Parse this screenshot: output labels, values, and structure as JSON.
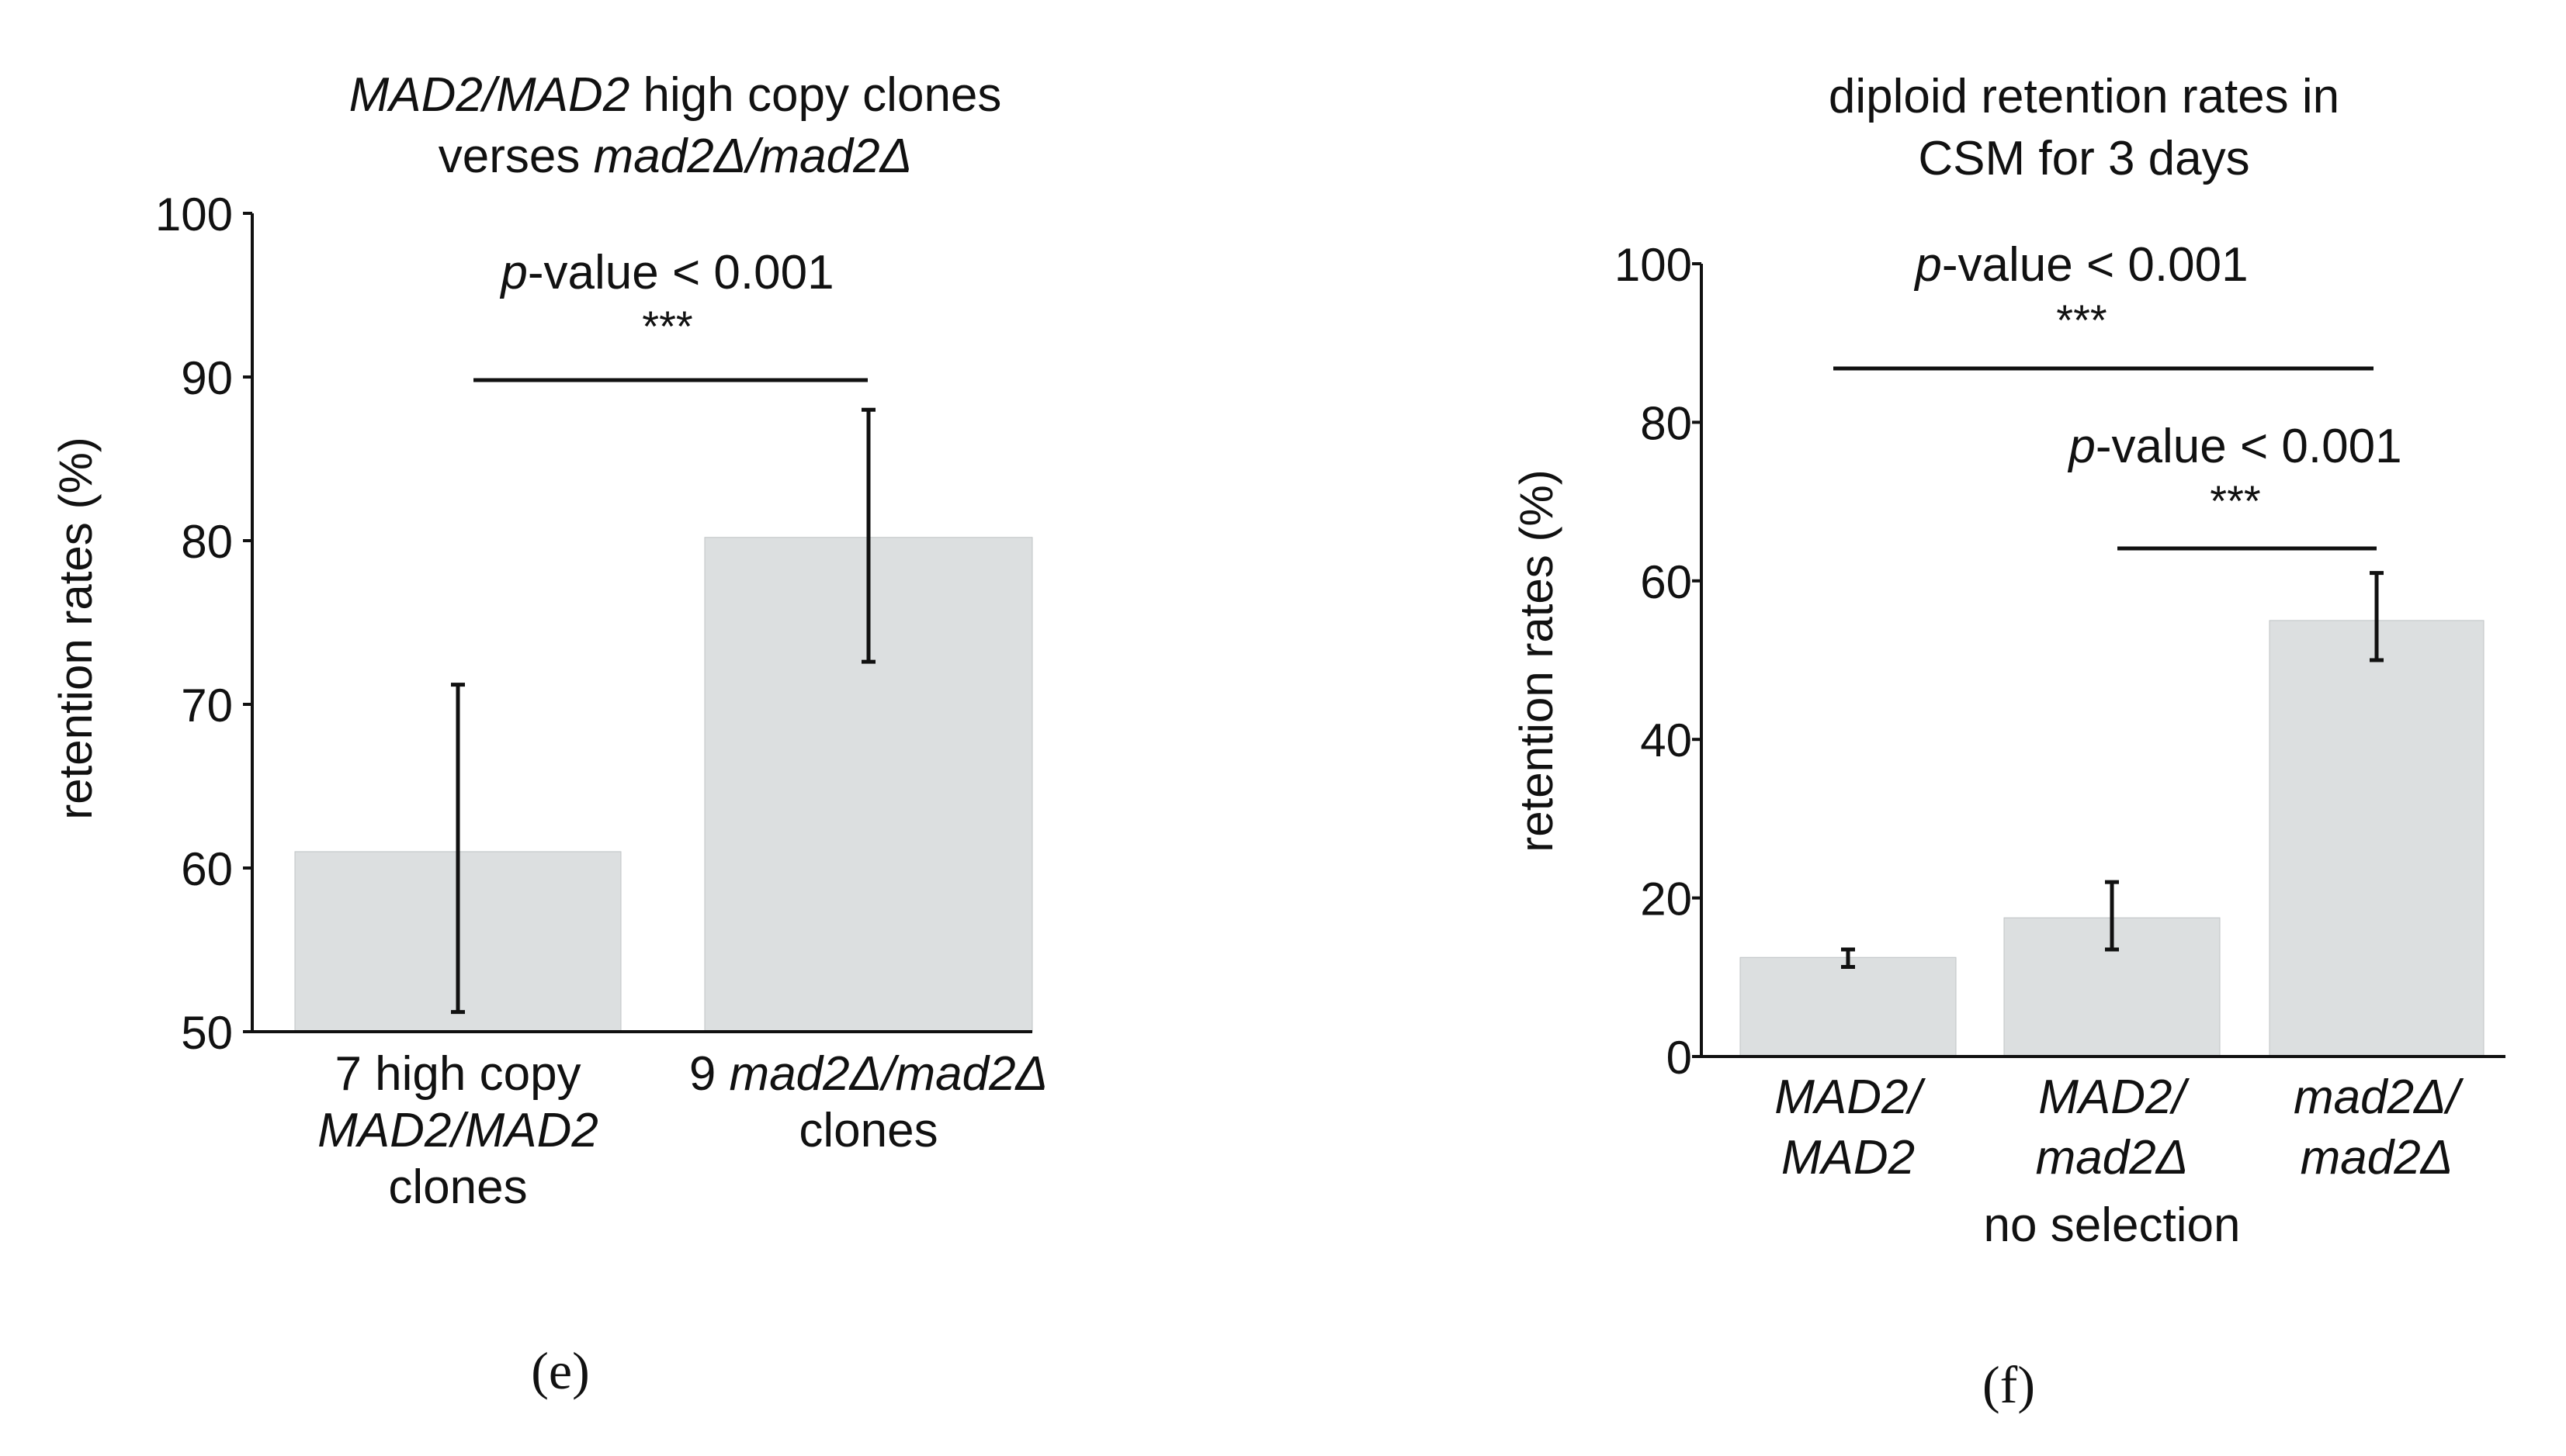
{
  "chart_data": [
    {
      "panel": "(e)",
      "type": "bar",
      "title_line1": {
        "italic": "MAD2/MAD2",
        "plain": " high copy clones"
      },
      "title_line2": {
        "plain": "verses ",
        "italic": "mad2Δ/mad2Δ"
      },
      "ylabel": "retention rates (%)",
      "ylim": [
        50,
        100
      ],
      "yticks": [
        "50",
        "60",
        "70",
        "80",
        "90",
        "100"
      ],
      "categories": [
        {
          "lines": [
            {
              "text": "7 high copy",
              "italic": false
            },
            {
              "text": "MAD2/MAD2",
              "italic": true
            },
            {
              "text": "clones",
              "italic": false
            }
          ]
        },
        {
          "lines": [
            {
              "prefix": "9 ",
              "text": "mad2Δ/mad2Δ",
              "italic": true
            },
            {
              "text": "clones",
              "italic": false
            }
          ]
        }
      ],
      "values": [
        61,
        80.2
      ],
      "error_low": [
        51.2,
        72.6
      ],
      "error_high": [
        71.2,
        88.0
      ],
      "significance": [
        {
          "from": 0,
          "to": 1,
          "pvalue_italic": "p",
          "pvalue_text": "-value < 0.001",
          "stars": "***"
        }
      ]
    },
    {
      "panel": "(f)",
      "type": "bar",
      "title_line1": {
        "plain": "diploid retention rates in"
      },
      "title_line2": {
        "plain": "CSM for 3 days"
      },
      "ylabel": "retention rates (%)",
      "ylim": [
        0,
        100
      ],
      "yticks": [
        "0",
        "20",
        "40",
        "60",
        "80",
        "100"
      ],
      "categories": [
        {
          "lines": [
            {
              "text": "MAD2/",
              "italic": true
            },
            {
              "text": "MAD2",
              "italic": true
            }
          ]
        },
        {
          "lines": [
            {
              "text": "MAD2/",
              "italic": true
            },
            {
              "text": "mad2Δ",
              "italic": true
            }
          ]
        },
        {
          "lines": [
            {
              "text": "mad2Δ/",
              "italic": true
            },
            {
              "text": "mad2Δ",
              "italic": true
            }
          ]
        }
      ],
      "group_label": "no selection",
      "values": [
        12.5,
        17.5,
        55
      ],
      "error_low": [
        11.3,
        13.5,
        50
      ],
      "error_high": [
        13.5,
        22,
        61
      ],
      "significance": [
        {
          "from": 0,
          "to": 2,
          "pvalue_italic": "p",
          "pvalue_text": "-value < 0.001",
          "stars": "***"
        },
        {
          "from": 1,
          "to": 2,
          "pvalue_italic": "p",
          "pvalue_text": "-value < 0.001",
          "stars": "***"
        }
      ]
    }
  ]
}
